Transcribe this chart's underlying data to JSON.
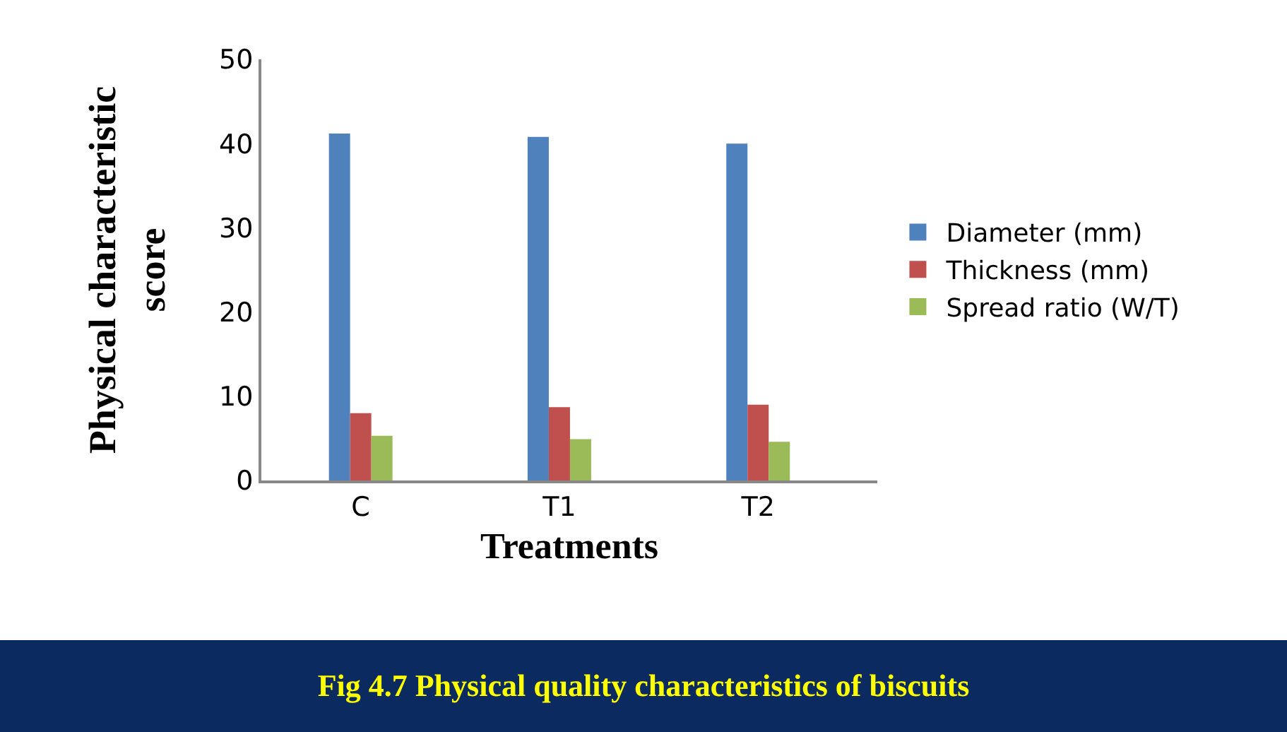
{
  "chart_data": {
    "type": "bar",
    "title": "Fig 4.7 Physical quality characteristics of biscuits",
    "xlabel": "Treatments",
    "ylabel": "Physical characteristic score",
    "categories": [
      "C",
      "T1",
      "T2"
    ],
    "series": [
      {
        "name": "Diameter (mm)",
        "color": "#4f81bd",
        "values": [
          41.2,
          40.8,
          40.0
        ]
      },
      {
        "name": "Thickness (mm)",
        "color": "#c0504d",
        "values": [
          8.0,
          8.7,
          9.0
        ]
      },
      {
        "name": "Spread ratio (W/T)",
        "color": "#9bbb59",
        "values": [
          5.3,
          4.9,
          4.6
        ]
      }
    ],
    "ylim": [
      0,
      50
    ],
    "yticks": [
      0,
      10,
      20,
      30,
      40,
      50
    ],
    "grid": false,
    "legend": "right"
  }
}
